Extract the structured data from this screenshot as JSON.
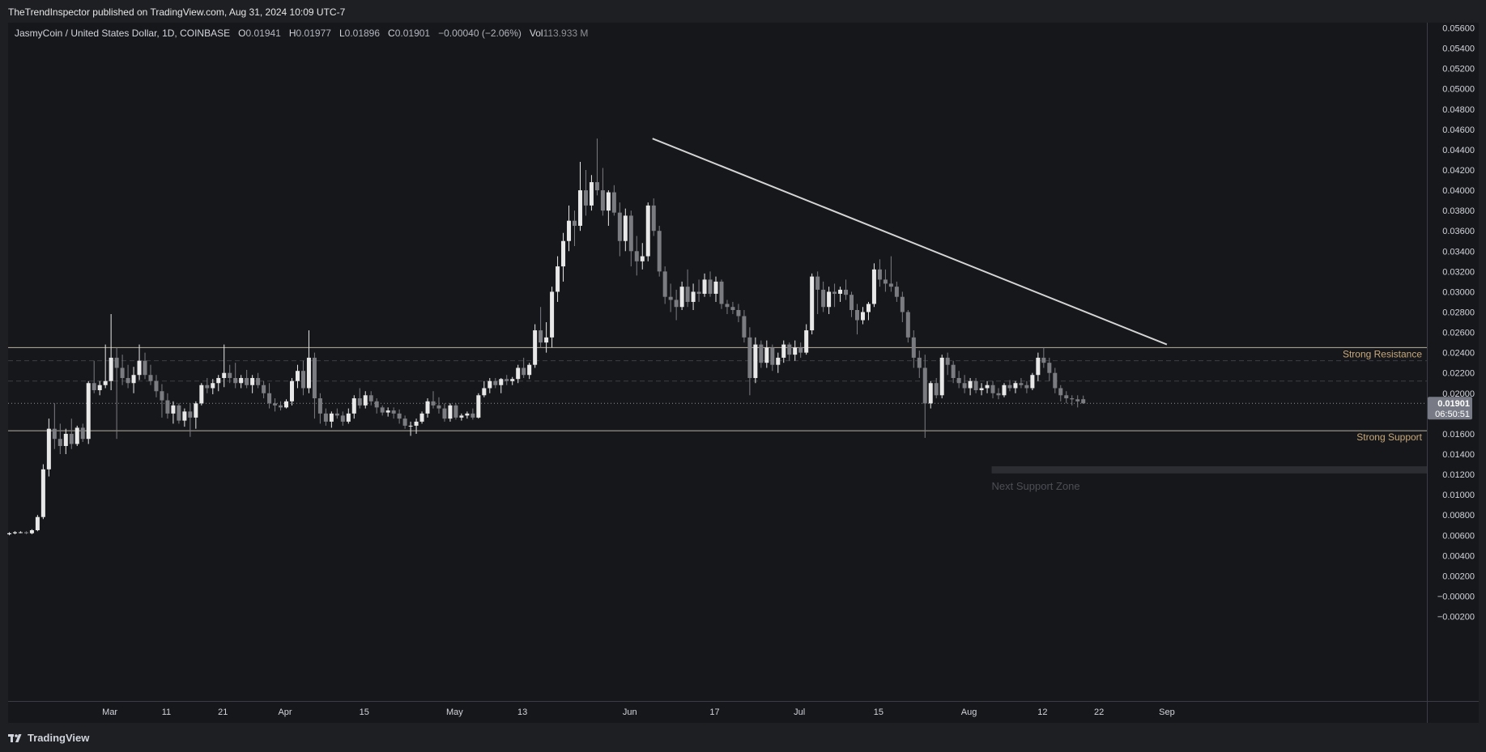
{
  "header": {
    "publisher_text": "TheTrendInspector published on TradingView.com, Aug 31, 2024 10:09 UTC-7"
  },
  "legend": {
    "symbol": "JasmyCoin / United States Dollar, 1D, COINBASE",
    "o_label": "O",
    "o_value": "0.01941",
    "h_label": "H",
    "h_value": "0.01977",
    "l_label": "L",
    "l_value": "0.01896",
    "c_label": "C",
    "c_value": "0.01901",
    "change": "−0.00040 (−2.06%)",
    "vol_label": "Vol",
    "vol_value": "113.933 M"
  },
  "price_tag": {
    "price": "0.01901",
    "countdown": "06:50:51"
  },
  "footer": {
    "brand": "TradingView"
  },
  "chart_data": {
    "type": "candlestick",
    "y_axis": {
      "min": 0.0,
      "max": 0.058,
      "ticks": [
        "0.05600",
        "0.05400",
        "0.05200",
        "0.05000",
        "0.04800",
        "0.04600",
        "0.04400",
        "0.04200",
        "0.04000",
        "0.03800",
        "0.03600",
        "0.03400",
        "0.03200",
        "0.03000",
        "0.02800",
        "0.02600",
        "0.02400",
        "0.02200",
        "0.02000",
        "0.01600",
        "0.01400",
        "0.01200",
        "0.01000",
        "0.00800",
        "0.00600",
        "0.00400",
        "0.00200",
        "−0.00000",
        "−0.00200"
      ],
      "tick_values": [
        0.056,
        0.054,
        0.052,
        0.05,
        0.048,
        0.046,
        0.044,
        0.042,
        0.04,
        0.038,
        0.036,
        0.034,
        0.032,
        0.03,
        0.028,
        0.026,
        0.024,
        0.022,
        0.02,
        0.016,
        0.014,
        0.012,
        0.01,
        0.008,
        0.006,
        0.004,
        0.002,
        0.0,
        -0.002
      ]
    },
    "x_axis": {
      "labels": [
        "Mar",
        "11",
        "21",
        "Apr",
        "15",
        "May",
        "13",
        "Jun",
        "17",
        "Jul",
        "15",
        "Aug",
        "12",
        "22",
        "Sep"
      ],
      "label_days": [
        18,
        28,
        38,
        49,
        63,
        79,
        91,
        110,
        125,
        140,
        154,
        170,
        183,
        193,
        205
      ]
    },
    "colors": {
      "up": "#e8e8e8",
      "down": "#7b7c82",
      "trendline": "#d4d4d4",
      "level": "#b8b0a0",
      "level_text": "#c9a97a"
    },
    "levels": [
      {
        "name": "Strong Resistance",
        "price": 0.0245
      },
      {
        "name": "Strong Support",
        "price": 0.0163
      }
    ],
    "dashed_levels": [
      0.0232,
      0.0212
    ],
    "current_price": 0.01901,
    "zone": {
      "label": "Next Support Zone",
      "price_top": 0.0128,
      "price_bottom": 0.0121,
      "start_day": 174
    },
    "trendline": {
      "start_day": 114,
      "start_price": 0.0451,
      "end_day": 205,
      "end_price": 0.0248
    },
    "candles": [
      [
        0.0061,
        0.0063,
        0.006,
        0.0062
      ],
      [
        0.0062,
        0.0064,
        0.0061,
        0.0063
      ],
      [
        0.0063,
        0.0064,
        0.0062,
        0.0063
      ],
      [
        0.0063,
        0.0064,
        0.0061,
        0.0062
      ],
      [
        0.0062,
        0.0066,
        0.0061,
        0.0065
      ],
      [
        0.0065,
        0.008,
        0.0064,
        0.0078
      ],
      [
        0.0078,
        0.013,
        0.0076,
        0.0125
      ],
      [
        0.0125,
        0.0175,
        0.0118,
        0.0165
      ],
      [
        0.0165,
        0.019,
        0.0145,
        0.0155
      ],
      [
        0.0155,
        0.017,
        0.014,
        0.0148
      ],
      [
        0.0148,
        0.0165,
        0.014,
        0.016
      ],
      [
        0.016,
        0.0175,
        0.0145,
        0.015
      ],
      [
        0.015,
        0.0168,
        0.0148,
        0.0166
      ],
      [
        0.0166,
        0.017,
        0.0152,
        0.0155
      ],
      [
        0.0155,
        0.0212,
        0.015,
        0.021
      ],
      [
        0.021,
        0.0232,
        0.02,
        0.0203
      ],
      [
        0.0203,
        0.0212,
        0.0198,
        0.0208
      ],
      [
        0.0208,
        0.0248,
        0.0205,
        0.0212
      ],
      [
        0.0212,
        0.0278,
        0.0203,
        0.0235
      ],
      [
        0.0235,
        0.0245,
        0.0155,
        0.0225
      ],
      [
        0.0225,
        0.0238,
        0.0208,
        0.0215
      ],
      [
        0.0215,
        0.0228,
        0.0205,
        0.021
      ],
      [
        0.021,
        0.0226,
        0.02,
        0.0218
      ],
      [
        0.0218,
        0.0248,
        0.0213,
        0.0232
      ],
      [
        0.0232,
        0.024,
        0.0214,
        0.0218
      ],
      [
        0.0218,
        0.0228,
        0.0208,
        0.0212
      ],
      [
        0.0212,
        0.0218,
        0.0196,
        0.0202
      ],
      [
        0.0202,
        0.0209,
        0.0176,
        0.0193
      ],
      [
        0.0193,
        0.02,
        0.0175,
        0.018
      ],
      [
        0.018,
        0.0192,
        0.017,
        0.0188
      ],
      [
        0.0188,
        0.019,
        0.017,
        0.0173
      ],
      [
        0.0173,
        0.0185,
        0.0167,
        0.0182
      ],
      [
        0.0182,
        0.019,
        0.0157,
        0.0176
      ],
      [
        0.0176,
        0.0192,
        0.0165,
        0.019
      ],
      [
        0.019,
        0.021,
        0.0188,
        0.0208
      ],
      [
        0.0208,
        0.0215,
        0.02,
        0.0205
      ],
      [
        0.0205,
        0.0214,
        0.0199,
        0.021
      ],
      [
        0.021,
        0.0218,
        0.0202,
        0.0215
      ],
      [
        0.0215,
        0.0248,
        0.0206,
        0.022
      ],
      [
        0.022,
        0.0228,
        0.021,
        0.0215
      ],
      [
        0.0215,
        0.023,
        0.0205,
        0.021
      ],
      [
        0.021,
        0.0218,
        0.0205,
        0.0215
      ],
      [
        0.0215,
        0.0223,
        0.0205,
        0.0208
      ],
      [
        0.0208,
        0.0218,
        0.02,
        0.0215
      ],
      [
        0.0215,
        0.022,
        0.0205,
        0.0208
      ],
      [
        0.0208,
        0.0212,
        0.0195,
        0.02
      ],
      [
        0.02,
        0.021,
        0.0185,
        0.019
      ],
      [
        0.019,
        0.0195,
        0.0182,
        0.0188
      ],
      [
        0.0188,
        0.0192,
        0.0183,
        0.0186
      ],
      [
        0.0186,
        0.0194,
        0.0185,
        0.0192
      ],
      [
        0.0192,
        0.0215,
        0.0188,
        0.0212
      ],
      [
        0.0212,
        0.0228,
        0.0205,
        0.0222
      ],
      [
        0.0222,
        0.0232,
        0.0198,
        0.0205
      ],
      [
        0.0205,
        0.0262,
        0.02,
        0.0235
      ],
      [
        0.0235,
        0.024,
        0.0175,
        0.0195
      ],
      [
        0.0195,
        0.02,
        0.017,
        0.018
      ],
      [
        0.018,
        0.0185,
        0.0168,
        0.0172
      ],
      [
        0.0172,
        0.0182,
        0.0166,
        0.018
      ],
      [
        0.018,
        0.0185,
        0.0175,
        0.0178
      ],
      [
        0.0178,
        0.0182,
        0.0168,
        0.0172
      ],
      [
        0.0172,
        0.0185,
        0.017,
        0.018
      ],
      [
        0.018,
        0.0198,
        0.0175,
        0.0195
      ],
      [
        0.0195,
        0.0205,
        0.0185,
        0.0188
      ],
      [
        0.0188,
        0.0202,
        0.0185,
        0.0198
      ],
      [
        0.0198,
        0.0202,
        0.0188,
        0.0192
      ],
      [
        0.0192,
        0.0195,
        0.018,
        0.0186
      ],
      [
        0.0186,
        0.0188,
        0.0178,
        0.0181
      ],
      [
        0.0181,
        0.0186,
        0.0177,
        0.0183
      ],
      [
        0.0183,
        0.0186,
        0.0175,
        0.018
      ],
      [
        0.018,
        0.0184,
        0.017,
        0.0175
      ],
      [
        0.0175,
        0.0178,
        0.0165,
        0.0168
      ],
      [
        0.0168,
        0.0172,
        0.0158,
        0.0168
      ],
      [
        0.0168,
        0.0175,
        0.016,
        0.0172
      ],
      [
        0.0172,
        0.0182,
        0.017,
        0.018
      ],
      [
        0.018,
        0.0195,
        0.0176,
        0.0192
      ],
      [
        0.0192,
        0.0202,
        0.0185,
        0.0188
      ],
      [
        0.0188,
        0.0196,
        0.018,
        0.0185
      ],
      [
        0.0185,
        0.019,
        0.0172,
        0.0175
      ],
      [
        0.0175,
        0.019,
        0.0172,
        0.0188
      ],
      [
        0.0188,
        0.019,
        0.0174,
        0.0176
      ],
      [
        0.0176,
        0.018,
        0.0173,
        0.0178
      ],
      [
        0.0178,
        0.0182,
        0.0175,
        0.018
      ],
      [
        0.018,
        0.0185,
        0.0174,
        0.0176
      ],
      [
        0.0176,
        0.02,
        0.0175,
        0.0198
      ],
      [
        0.0198,
        0.0212,
        0.0196,
        0.0205
      ],
      [
        0.0205,
        0.0215,
        0.02,
        0.0212
      ],
      [
        0.0212,
        0.0215,
        0.0205,
        0.0208
      ],
      [
        0.0208,
        0.0215,
        0.02,
        0.0214
      ],
      [
        0.0214,
        0.0218,
        0.0208,
        0.0212
      ],
      [
        0.0212,
        0.0216,
        0.0208,
        0.0214
      ],
      [
        0.0214,
        0.0228,
        0.021,
        0.0225
      ],
      [
        0.0225,
        0.0235,
        0.0215,
        0.0218
      ],
      [
        0.0218,
        0.023,
        0.0214,
        0.0228
      ],
      [
        0.0228,
        0.0268,
        0.0225,
        0.0262
      ],
      [
        0.0262,
        0.0285,
        0.0245,
        0.025
      ],
      [
        0.025,
        0.027,
        0.024,
        0.0255
      ],
      [
        0.0255,
        0.0305,
        0.0245,
        0.03
      ],
      [
        0.03,
        0.0335,
        0.029,
        0.0325
      ],
      [
        0.0325,
        0.0358,
        0.031,
        0.035
      ],
      [
        0.035,
        0.0385,
        0.034,
        0.037
      ],
      [
        0.037,
        0.038,
        0.0345,
        0.0365
      ],
      [
        0.0365,
        0.0428,
        0.036,
        0.04
      ],
      [
        0.04,
        0.042,
        0.0375,
        0.0385
      ],
      [
        0.0385,
        0.0415,
        0.038,
        0.0408
      ],
      [
        0.0408,
        0.0451,
        0.0395,
        0.04
      ],
      [
        0.04,
        0.0422,
        0.0375,
        0.038
      ],
      [
        0.038,
        0.04,
        0.0365,
        0.0398
      ],
      [
        0.0398,
        0.0405,
        0.0375,
        0.0378
      ],
      [
        0.0378,
        0.0388,
        0.0335,
        0.035
      ],
      [
        0.035,
        0.0382,
        0.034,
        0.0375
      ],
      [
        0.0375,
        0.038,
        0.0325,
        0.034
      ],
      [
        0.034,
        0.0355,
        0.0316,
        0.033
      ],
      [
        0.033,
        0.0348,
        0.0322,
        0.0335
      ],
      [
        0.0335,
        0.0388,
        0.033,
        0.0385
      ],
      [
        0.0385,
        0.0392,
        0.0355,
        0.036
      ],
      [
        0.036,
        0.0365,
        0.0315,
        0.032
      ],
      [
        0.032,
        0.0325,
        0.0288,
        0.0295
      ],
      [
        0.0295,
        0.0308,
        0.028,
        0.0292
      ],
      [
        0.0292,
        0.0302,
        0.0272,
        0.0285
      ],
      [
        0.0285,
        0.031,
        0.0282,
        0.0305
      ],
      [
        0.0305,
        0.0322,
        0.0285,
        0.029
      ],
      [
        0.029,
        0.0308,
        0.0282,
        0.03
      ],
      [
        0.03,
        0.0312,
        0.029,
        0.0298
      ],
      [
        0.0298,
        0.0318,
        0.0295,
        0.0312
      ],
      [
        0.0312,
        0.032,
        0.0295,
        0.0298
      ],
      [
        0.0298,
        0.0315,
        0.029,
        0.031
      ],
      [
        0.031,
        0.0312,
        0.0283,
        0.0288
      ],
      [
        0.0288,
        0.0292,
        0.0278,
        0.0285
      ],
      [
        0.0285,
        0.029,
        0.0278,
        0.0282
      ],
      [
        0.0282,
        0.0288,
        0.027,
        0.0276
      ],
      [
        0.0276,
        0.0282,
        0.025,
        0.0255
      ],
      [
        0.0255,
        0.0265,
        0.0198,
        0.0215
      ],
      [
        0.0215,
        0.0255,
        0.021,
        0.0248
      ],
      [
        0.0248,
        0.0252,
        0.0225,
        0.023
      ],
      [
        0.023,
        0.0252,
        0.0225,
        0.0245
      ],
      [
        0.0245,
        0.0248,
        0.0222,
        0.0228
      ],
      [
        0.0228,
        0.024,
        0.022,
        0.0235
      ],
      [
        0.0235,
        0.0252,
        0.023,
        0.0248
      ],
      [
        0.0248,
        0.025,
        0.0232,
        0.0238
      ],
      [
        0.0238,
        0.0252,
        0.0232,
        0.0245
      ],
      [
        0.0245,
        0.025,
        0.0235,
        0.024
      ],
      [
        0.024,
        0.0268,
        0.0238,
        0.0262
      ],
      [
        0.0262,
        0.0318,
        0.0258,
        0.0315
      ],
      [
        0.0315,
        0.032,
        0.0278,
        0.0302
      ],
      [
        0.0302,
        0.031,
        0.028,
        0.0285
      ],
      [
        0.0285,
        0.0305,
        0.0278,
        0.03
      ],
      [
        0.03,
        0.0308,
        0.0285,
        0.0298
      ],
      [
        0.0298,
        0.0305,
        0.029,
        0.0302
      ],
      [
        0.0302,
        0.0312,
        0.0292,
        0.0297
      ],
      [
        0.0297,
        0.03,
        0.0275,
        0.0282
      ],
      [
        0.0282,
        0.0288,
        0.0258,
        0.0272
      ],
      [
        0.0272,
        0.0285,
        0.0268,
        0.028
      ],
      [
        0.028,
        0.029,
        0.0272,
        0.0288
      ],
      [
        0.0288,
        0.0328,
        0.0285,
        0.0322
      ],
      [
        0.0322,
        0.0332,
        0.0305,
        0.0312
      ],
      [
        0.0312,
        0.0322,
        0.03,
        0.0308
      ],
      [
        0.0308,
        0.0335,
        0.03,
        0.0305
      ],
      [
        0.0305,
        0.031,
        0.029,
        0.0295
      ],
      [
        0.0295,
        0.03,
        0.027,
        0.028
      ],
      [
        0.028,
        0.0282,
        0.025,
        0.0255
      ],
      [
        0.0255,
        0.0262,
        0.0225,
        0.0235
      ],
      [
        0.0235,
        0.0242,
        0.0215,
        0.0225
      ],
      [
        0.0225,
        0.0238,
        0.0156,
        0.019
      ],
      [
        0.019,
        0.0212,
        0.0185,
        0.021
      ],
      [
        0.021,
        0.0215,
        0.0195,
        0.0198
      ],
      [
        0.0198,
        0.0238,
        0.0195,
        0.0235
      ],
      [
        0.0235,
        0.024,
        0.0218,
        0.0228
      ],
      [
        0.0228,
        0.0232,
        0.021,
        0.0215
      ],
      [
        0.0215,
        0.0222,
        0.0205,
        0.021
      ],
      [
        0.021,
        0.0218,
        0.02,
        0.0205
      ],
      [
        0.0205,
        0.0215,
        0.0198,
        0.0212
      ],
      [
        0.0212,
        0.0215,
        0.02,
        0.0203
      ],
      [
        0.0203,
        0.021,
        0.0198,
        0.0205
      ],
      [
        0.0205,
        0.0212,
        0.02,
        0.0208
      ],
      [
        0.0208,
        0.0212,
        0.0195,
        0.02
      ],
      [
        0.02,
        0.0205,
        0.0194,
        0.0198
      ],
      [
        0.0198,
        0.021,
        0.0196,
        0.0208
      ],
      [
        0.0208,
        0.0213,
        0.0202,
        0.0205
      ],
      [
        0.0205,
        0.0212,
        0.02,
        0.021
      ],
      [
        0.021,
        0.0215,
        0.0205,
        0.0208
      ],
      [
        0.0208,
        0.0212,
        0.02,
        0.0205
      ],
      [
        0.0205,
        0.022,
        0.0203,
        0.0218
      ],
      [
        0.0218,
        0.024,
        0.0212,
        0.0235
      ],
      [
        0.0235,
        0.0245,
        0.0225,
        0.023
      ],
      [
        0.023,
        0.0235,
        0.0212,
        0.022
      ],
      [
        0.022,
        0.0225,
        0.02,
        0.0205
      ],
      [
        0.0205,
        0.0208,
        0.0192,
        0.0198
      ],
      [
        0.0198,
        0.0202,
        0.019,
        0.0195
      ],
      [
        0.0195,
        0.0198,
        0.0188,
        0.0194
      ],
      [
        0.0194,
        0.0198,
        0.0186,
        0.0192
      ],
      [
        0.01941,
        0.01977,
        0.01896,
        0.01901
      ]
    ]
  }
}
